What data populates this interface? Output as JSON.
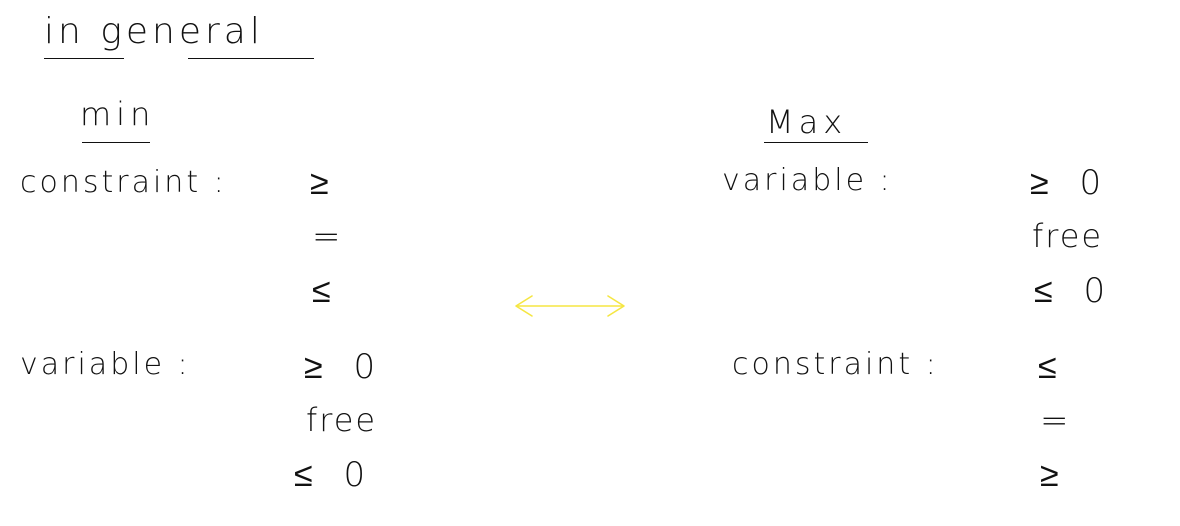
{
  "title": "in general",
  "arrow_color": "#f5e642",
  "ink_color": "#111111",
  "min_side": {
    "heading": "min",
    "constraint_label": "constraint :",
    "constraint_relations": [
      "≥",
      "=",
      "≤"
    ],
    "variable_label": "variable :",
    "variable_relations": [
      "≥ 0",
      "free",
      "≤ 0"
    ]
  },
  "max_side": {
    "heading": "Max",
    "variable_label": "variable :",
    "variable_relations": [
      "≥ 0",
      "free",
      "≤ 0"
    ],
    "constraint_label": "constraint :",
    "constraint_relations": [
      "≤",
      "=",
      "≥"
    ]
  },
  "correspondence_icon": "double-arrow-icon"
}
